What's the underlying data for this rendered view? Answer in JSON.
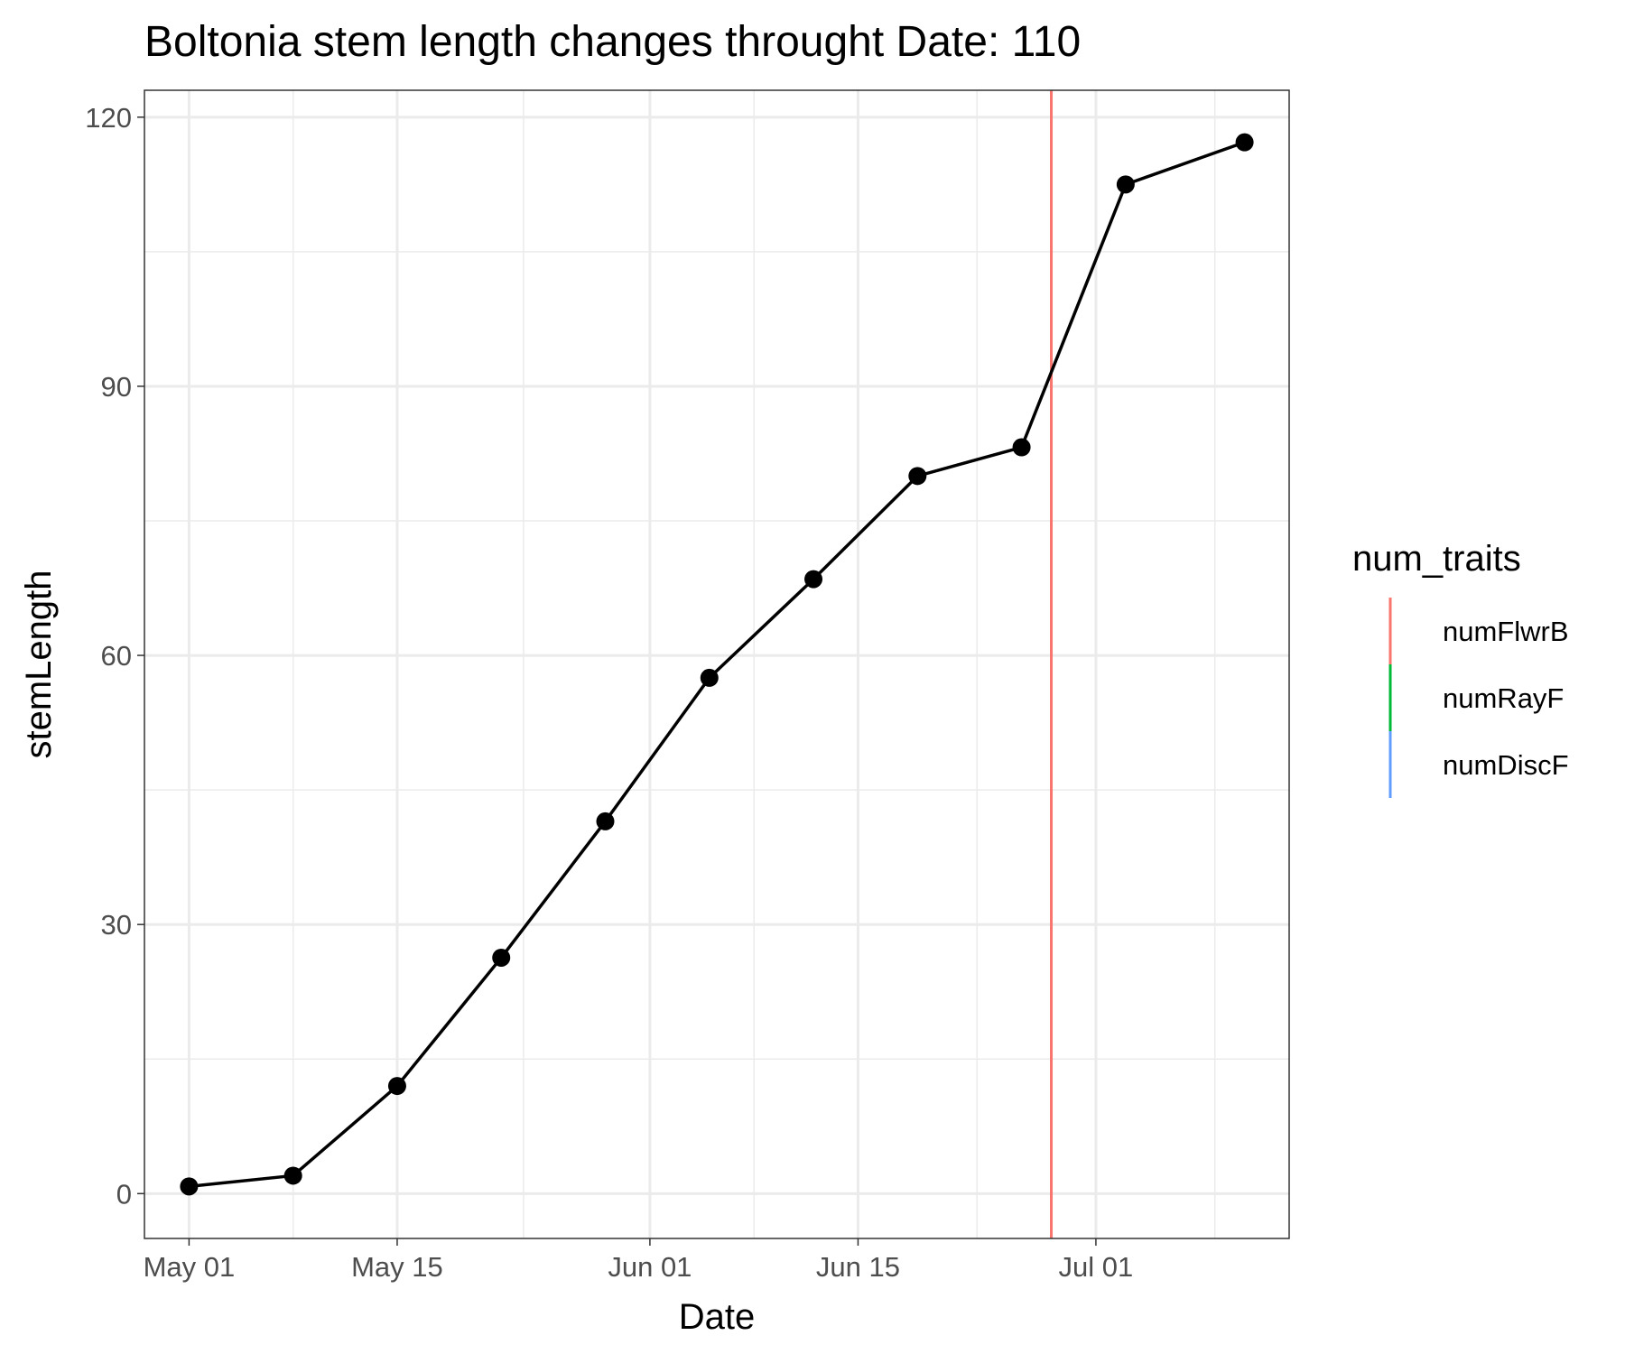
{
  "chart_data": {
    "type": "line",
    "title": "Boltonia stem length changes throught Date:  110",
    "xlabel": "Date",
    "ylabel": "stemLength",
    "x_ticks": [
      "May 01",
      "May 15",
      "Jun 01",
      "Jun 15",
      "Jul 01"
    ],
    "y_ticks": [
      "0",
      "30",
      "60",
      "90",
      "120"
    ],
    "ylim": [
      -5,
      123
    ],
    "xlim": [
      "2023-04-28",
      "2023-07-14"
    ],
    "grid": true,
    "series": [
      {
        "x": [
          "2023-05-01",
          "2023-05-08",
          "2023-05-15",
          "2023-05-22",
          "2023-05-29",
          "2023-06-05",
          "2023-06-12",
          "2023-06-19",
          "2023-06-26",
          "2023-07-03",
          "2023-07-11"
        ],
        "y": [
          0.8,
          2.0,
          12.0,
          26.3,
          41.5,
          57.5,
          68.5,
          80.0,
          83.2,
          112.5,
          117.2
        ],
        "color": "#000000"
      }
    ],
    "vlines": [
      {
        "x": "2023-06-28",
        "trait": "numFlwrB",
        "color": "#F8766D"
      }
    ],
    "legend": {
      "title": "num_traits",
      "position": "right",
      "entries": [
        {
          "label": "numFlwrB",
          "color": "#F8766D"
        },
        {
          "label": "numRayF",
          "color": "#00BA38"
        },
        {
          "label": "numDiscF",
          "color": "#619CFF"
        }
      ]
    }
  }
}
